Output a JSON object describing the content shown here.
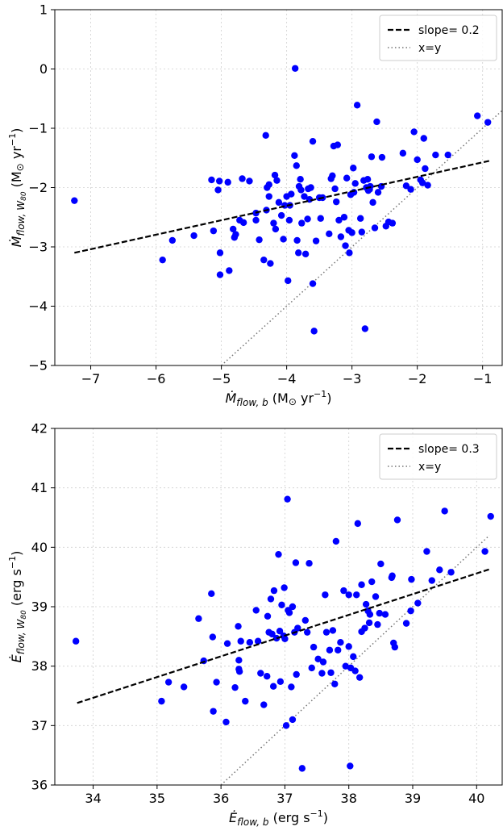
{
  "chart_data": [
    {
      "type": "scatter",
      "xlabel": "Ṁ_flow,b (M⊙ yr⁻¹)",
      "ylabel": "Ṁ_flow,W80 (M⊙ yr⁻¹)",
      "xlim": [
        -7.55,
        -0.7
      ],
      "ylim": [
        -5,
        1
      ],
      "xticks": [
        -7,
        -6,
        -5,
        -4,
        -3,
        -2,
        -1
      ],
      "yticks": [
        -5,
        -4,
        -3,
        -2,
        -1,
        0,
        1
      ],
      "grid": true,
      "legend_position": "top-right",
      "legend": [
        "slope= 0.2",
        "x=y"
      ],
      "fit_line": {
        "name": "slope= 0.2",
        "x": [
          -7.25,
          -0.9
        ],
        "y": [
          -3.1,
          -1.55
        ]
      },
      "identity_line": {
        "name": "x=y",
        "x": [
          -5,
          -0.7
        ],
        "y": [
          -5,
          -0.7
        ]
      },
      "marker_color": "#0000ff",
      "points": [
        [
          -7.25,
          -2.22
        ],
        [
          -5.9,
          -3.22
        ],
        [
          -5.75,
          -2.89
        ],
        [
          -5.42,
          -2.81
        ],
        [
          -5.15,
          -1.87
        ],
        [
          -5.12,
          -2.73
        ],
        [
          -5.05,
          -2.04
        ],
        [
          -5.03,
          -1.89
        ],
        [
          -5.02,
          -3.1
        ],
        [
          -5.02,
          -3.47
        ],
        [
          -4.9,
          -1.91
        ],
        [
          -4.88,
          -3.4
        ],
        [
          -4.82,
          -2.7
        ],
        [
          -4.8,
          -2.84
        ],
        [
          -4.78,
          -2.79
        ],
        [
          -4.72,
          -2.55
        ],
        [
          -4.68,
          -1.85
        ],
        [
          -4.66,
          -2.59
        ],
        [
          -4.57,
          -1.89
        ],
        [
          -4.47,
          -2.43
        ],
        [
          -4.47,
          -2.55
        ],
        [
          -4.42,
          -2.88
        ],
        [
          -4.35,
          -3.22
        ],
        [
          -4.32,
          -1.12
        ],
        [
          -4.31,
          -2.38
        ],
        [
          -4.3,
          -2.0
        ],
        [
          -4.27,
          -1.95
        ],
        [
          -4.27,
          -2.15
        ],
        [
          -4.25,
          -3.28
        ],
        [
          -4.2,
          -2.6
        ],
        [
          -4.18,
          -1.79
        ],
        [
          -4.17,
          -2.7
        ],
        [
          -4.15,
          -1.88
        ],
        [
          -4.12,
          -2.25
        ],
        [
          -4.08,
          -2.47
        ],
        [
          -4.05,
          -2.87
        ],
        [
          -4.03,
          -2.3
        ],
        [
          -4.0,
          -2.15
        ],
        [
          -3.98,
          -3.57
        ],
        [
          -3.96,
          -2.55
        ],
        [
          -3.95,
          -2.3
        ],
        [
          -3.93,
          -2.11
        ],
        [
          -3.88,
          -1.46
        ],
        [
          -3.87,
          0.01
        ],
        [
          -3.85,
          -1.63
        ],
        [
          -3.84,
          -2.89
        ],
        [
          -3.82,
          -3.1
        ],
        [
          -3.81,
          -1.98
        ],
        [
          -3.79,
          -1.86
        ],
        [
          -3.78,
          -2.04
        ],
        [
          -3.77,
          -2.6
        ],
        [
          -3.73,
          -2.15
        ],
        [
          -3.71,
          -3.12
        ],
        [
          -3.68,
          -2.53
        ],
        [
          -3.67,
          -2.02
        ],
        [
          -3.65,
          -2.2
        ],
        [
          -3.63,
          -2.0
        ],
        [
          -3.6,
          -1.22
        ],
        [
          -3.6,
          -3.62
        ],
        [
          -3.58,
          -4.42
        ],
        [
          -3.55,
          -2.9
        ],
        [
          -3.5,
          -2.17
        ],
        [
          -3.48,
          -2.52
        ],
        [
          -3.45,
          -2.17
        ],
        [
          -3.35,
          -2.78
        ],
        [
          -3.32,
          -1.85
        ],
        [
          -3.3,
          -1.8
        ],
        [
          -3.28,
          -1.3
        ],
        [
          -3.26,
          -2.02
        ],
        [
          -3.24,
          -2.24
        ],
        [
          -3.22,
          -1.28
        ],
        [
          -3.2,
          -2.55
        ],
        [
          -3.17,
          -2.83
        ],
        [
          -3.12,
          -2.5
        ],
        [
          -3.1,
          -2.98
        ],
        [
          -3.08,
          -1.84
        ],
        [
          -3.05,
          -2.72
        ],
        [
          -3.04,
          -3.1
        ],
        [
          -3.02,
          -2.12
        ],
        [
          -3.0,
          -2.76
        ],
        [
          -2.98,
          -1.67
        ],
        [
          -2.97,
          -2.08
        ],
        [
          -2.95,
          -1.93
        ],
        [
          -2.92,
          -0.61
        ],
        [
          -2.87,
          -2.52
        ],
        [
          -2.85,
          -2.75
        ],
        [
          -2.82,
          -1.88
        ],
        [
          -2.8,
          -4.38
        ],
        [
          -2.78,
          -2.0
        ],
        [
          -2.76,
          -1.86
        ],
        [
          -2.75,
          -2.05
        ],
        [
          -2.73,
          -2.03
        ],
        [
          -2.72,
          -1.98
        ],
        [
          -2.7,
          -1.48
        ],
        [
          -2.68,
          -2.25
        ],
        [
          -2.65,
          -2.68
        ],
        [
          -2.62,
          -0.89
        ],
        [
          -2.6,
          -2.08
        ],
        [
          -2.55,
          -1.98
        ],
        [
          -2.54,
          -1.49
        ],
        [
          -2.48,
          -2.65
        ],
        [
          -2.44,
          -2.58
        ],
        [
          -2.38,
          -2.6
        ],
        [
          -2.22,
          -1.42
        ],
        [
          -2.17,
          -1.97
        ],
        [
          -2.1,
          -2.03
        ],
        [
          -2.05,
          -1.06
        ],
        [
          -2.0,
          -1.53
        ],
        [
          -1.95,
          -1.87
        ],
        [
          -1.92,
          -1.92
        ],
        [
          -1.9,
          -1.17
        ],
        [
          -1.88,
          -1.68
        ],
        [
          -1.84,
          -1.96
        ],
        [
          -1.72,
          -1.45
        ],
        [
          -1.53,
          -1.45
        ],
        [
          -1.08,
          -0.79
        ],
        [
          -0.92,
          -0.9
        ]
      ]
    },
    {
      "type": "scatter",
      "xlabel": "Ė_flow,b (erg s⁻¹)",
      "ylabel": "Ė_flow,W80 (erg s⁻¹)",
      "xlim": [
        33.4,
        40.4
      ],
      "ylim": [
        36,
        42
      ],
      "xticks": [
        34,
        35,
        36,
        37,
        38,
        39,
        40
      ],
      "yticks": [
        36,
        37,
        38,
        39,
        40,
        41,
        42
      ],
      "grid": true,
      "legend_position": "top-right",
      "legend": [
        "slope= 0.3",
        "x=y"
      ],
      "fit_line": {
        "name": "slope= 0.3",
        "x": [
          33.75,
          40.2
        ],
        "y": [
          37.38,
          39.63
        ]
      },
      "identity_line": {
        "name": "x=y",
        "x": [
          36,
          40.2
        ],
        "y": [
          36,
          40.2
        ]
      },
      "marker_color": "#0000ff",
      "points": [
        [
          33.73,
          38.42
        ],
        [
          35.07,
          37.41
        ],
        [
          35.18,
          37.73
        ],
        [
          35.42,
          37.65
        ],
        [
          35.65,
          38.8
        ],
        [
          35.73,
          38.09
        ],
        [
          35.85,
          39.22
        ],
        [
          35.87,
          38.49
        ],
        [
          35.88,
          37.24
        ],
        [
          35.93,
          37.73
        ],
        [
          36.08,
          37.06
        ],
        [
          36.1,
          38.38
        ],
        [
          36.22,
          37.64
        ],
        [
          36.27,
          38.67
        ],
        [
          36.28,
          38.1
        ],
        [
          36.28,
          37.95
        ],
        [
          36.29,
          37.91
        ],
        [
          36.31,
          38.42
        ],
        [
          36.38,
          37.41
        ],
        [
          36.45,
          38.4
        ],
        [
          36.55,
          38.94
        ],
        [
          36.58,
          38.42
        ],
        [
          36.62,
          37.88
        ],
        [
          36.67,
          37.35
        ],
        [
          36.72,
          37.83
        ],
        [
          36.73,
          38.84
        ],
        [
          36.75,
          38.57
        ],
        [
          36.78,
          39.13
        ],
        [
          36.8,
          38.54
        ],
        [
          36.82,
          37.66
        ],
        [
          36.83,
          39.27
        ],
        [
          36.87,
          38.47
        ],
        [
          36.9,
          39.88
        ],
        [
          36.92,
          38.59
        ],
        [
          36.93,
          37.74
        ],
        [
          36.95,
          39.03
        ],
        [
          36.98,
          38.51
        ],
        [
          36.99,
          39.32
        ],
        [
          37.0,
          38.46
        ],
        [
          37.02,
          37.0
        ],
        [
          37.04,
          40.81
        ],
        [
          37.05,
          38.94
        ],
        [
          37.07,
          38.9
        ],
        [
          37.12,
          39.0
        ],
        [
          37.1,
          37.65
        ],
        [
          37.12,
          37.1
        ],
        [
          37.15,
          38.57
        ],
        [
          37.17,
          39.74
        ],
        [
          37.18,
          37.86
        ],
        [
          37.2,
          38.64
        ],
        [
          37.27,
          36.28
        ],
        [
          37.32,
          38.77
        ],
        [
          37.35,
          38.57
        ],
        [
          37.38,
          39.73
        ],
        [
          37.42,
          37.97
        ],
        [
          37.45,
          38.32
        ],
        [
          37.52,
          38.12
        ],
        [
          37.58,
          37.88
        ],
        [
          37.6,
          38.07
        ],
        [
          37.63,
          39.2
        ],
        [
          37.65,
          38.57
        ],
        [
          37.7,
          38.27
        ],
        [
          37.72,
          37.89
        ],
        [
          37.75,
          38.6
        ],
        [
          37.78,
          37.7
        ],
        [
          37.8,
          40.1
        ],
        [
          37.83,
          38.27
        ],
        [
          37.87,
          38.4
        ],
        [
          37.92,
          39.27
        ],
        [
          37.95,
          38.0
        ],
        [
          38.0,
          38.33
        ],
        [
          38.0,
          39.2
        ],
        [
          38.02,
          36.32
        ],
        [
          38.03,
          37.97
        ],
        [
          38.07,
          38.16
        ],
        [
          38.1,
          37.92
        ],
        [
          38.12,
          39.2
        ],
        [
          38.14,
          40.4
        ],
        [
          38.17,
          37.81
        ],
        [
          38.2,
          38.58
        ],
        [
          38.2,
          39.37
        ],
        [
          38.25,
          38.64
        ],
        [
          38.27,
          39.04
        ],
        [
          38.3,
          38.93
        ],
        [
          38.32,
          38.73
        ],
        [
          38.33,
          38.87
        ],
        [
          38.36,
          39.42
        ],
        [
          38.42,
          39.17
        ],
        [
          38.45,
          38.7
        ],
        [
          38.48,
          38.89
        ],
        [
          38.5,
          39.72
        ],
        [
          38.57,
          38.87
        ],
        [
          38.67,
          39.49
        ],
        [
          38.68,
          39.52
        ],
        [
          38.7,
          38.39
        ],
        [
          38.72,
          38.32
        ],
        [
          38.76,
          40.46
        ],
        [
          38.9,
          38.72
        ],
        [
          38.97,
          38.93
        ],
        [
          38.98,
          39.46
        ],
        [
          39.08,
          39.06
        ],
        [
          39.22,
          39.93
        ],
        [
          39.3,
          39.44
        ],
        [
          39.42,
          39.62
        ],
        [
          39.5,
          40.61
        ],
        [
          39.6,
          39.58
        ],
        [
          40.13,
          39.93
        ],
        [
          40.22,
          40.52
        ]
      ]
    }
  ]
}
